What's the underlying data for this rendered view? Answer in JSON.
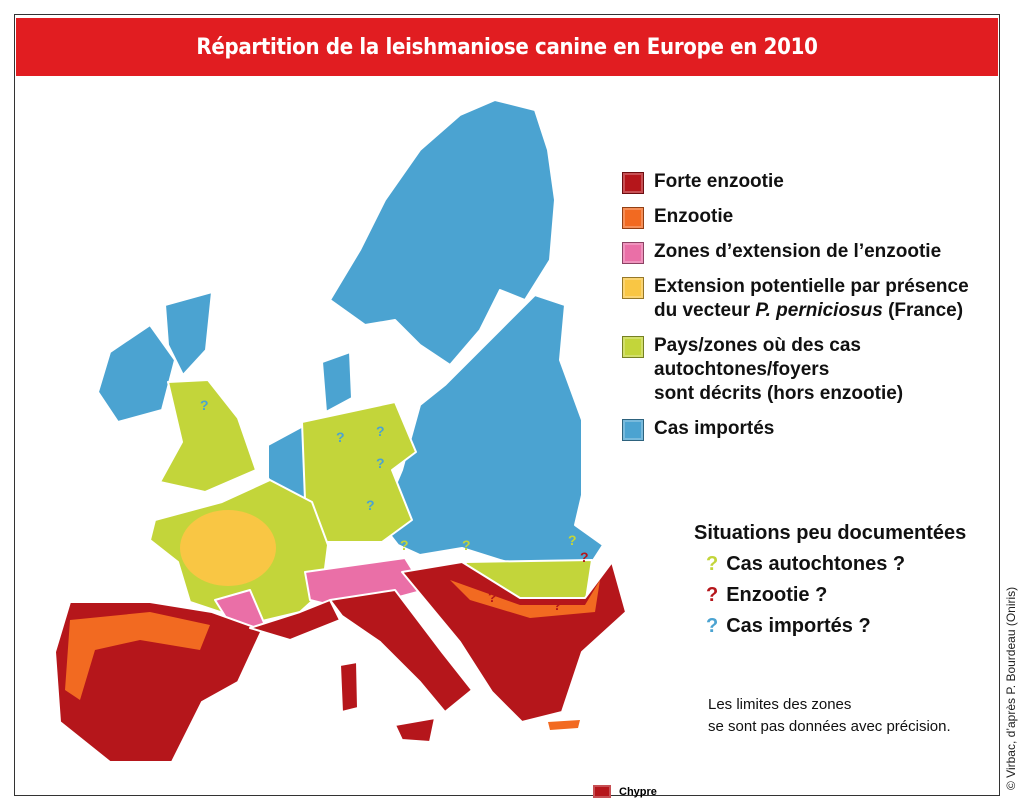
{
  "title": "Répartition de la leishmaniose canine en Europe en 2010",
  "colors": {
    "forte_enzootie": "#b5161b",
    "enzootie": "#f26a21",
    "extension_enzootie": "#ea6fa7",
    "extension_potentielle": "#f9c644",
    "cas_autochtones": "#c3d53a",
    "cas_importes": "#4ba3d1",
    "title_bar": "#e11d21"
  },
  "legend": [
    {
      "key": "forte_enzootie",
      "label": "Forte enzootie"
    },
    {
      "key": "enzootie",
      "label": "Enzootie"
    },
    {
      "key": "extension_enzootie",
      "label": "Zones d’extension de l’enzootie"
    },
    {
      "key": "extension_potentielle",
      "label_pre": "Extension potentielle par présence",
      "label_line2_pre": "du vecteur ",
      "label_italic": "P. perniciosus",
      "label_post": " (France)"
    },
    {
      "key": "cas_autochtones",
      "lines": [
        "Pays/zones où des cas",
        "autochtones/foyers",
        "sont décrits (hors enzootie)"
      ]
    },
    {
      "key": "cas_importes",
      "label": "Cas importés"
    }
  ],
  "uncertain": {
    "heading": "Situations peu documentées",
    "items": [
      {
        "mark": "?",
        "color": "#c3d53a",
        "label": "Cas autochtones ?"
      },
      {
        "mark": "?",
        "color": "#b5161b",
        "label": "Enzootie ?"
      },
      {
        "mark": "?",
        "color": "#4ba3d1",
        "label": "Cas importés ?"
      }
    ]
  },
  "note": [
    "Les limites des zones",
    "se sont pas données avec précision."
  ],
  "inset_label": "Chypre",
  "credit": "© Virbac, d’après P. Bourdeau (Oniris)",
  "question_mark": "?"
}
